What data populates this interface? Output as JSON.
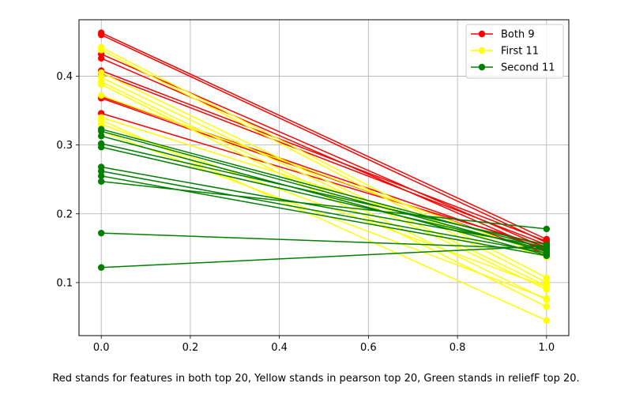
{
  "chart_data": {
    "type": "line",
    "title": "",
    "xlabel": "",
    "ylabel": "",
    "xlim": [
      -0.05,
      1.05
    ],
    "ylim": [
      0.023,
      0.482
    ],
    "xticks": [
      0.0,
      0.2,
      0.4,
      0.6,
      0.8,
      1.0
    ],
    "xtick_labels": [
      "0.0",
      "0.2",
      "0.4",
      "0.6",
      "0.8",
      "1.0"
    ],
    "yticks": [
      0.1,
      0.2,
      0.3,
      0.4
    ],
    "ytick_labels": [
      "0.1",
      "0.2",
      "0.3",
      "0.4"
    ],
    "grid": true,
    "legend_position": "top-right",
    "series": [
      {
        "name": "Both 9",
        "color": "#ff0000",
        "lines": [
          [
            0.463,
            0.163
          ],
          [
            0.46,
            0.158
          ],
          [
            0.432,
            0.15
          ],
          [
            0.426,
            0.145
          ],
          [
            0.408,
            0.16
          ],
          [
            0.404,
            0.155
          ],
          [
            0.37,
            0.148
          ],
          [
            0.368,
            0.142
          ],
          [
            0.346,
            0.152
          ]
        ]
      },
      {
        "name": "First 11",
        "color": "#ffff00",
        "lines": [
          [
            0.442,
            0.107
          ],
          [
            0.438,
            0.1
          ],
          [
            0.405,
            0.095
          ],
          [
            0.398,
            0.09
          ],
          [
            0.392,
            0.075
          ],
          [
            0.388,
            0.065
          ],
          [
            0.372,
            0.14
          ],
          [
            0.34,
            0.137
          ],
          [
            0.336,
            0.045
          ],
          [
            0.33,
            0.094
          ],
          [
            0.32,
            0.077
          ]
        ]
      },
      {
        "name": "Second 11",
        "color": "#008000",
        "lines": [
          [
            0.323,
            0.15
          ],
          [
            0.32,
            0.145
          ],
          [
            0.313,
            0.14
          ],
          [
            0.302,
            0.155
          ],
          [
            0.297,
            0.148
          ],
          [
            0.268,
            0.152
          ],
          [
            0.262,
            0.143
          ],
          [
            0.255,
            0.139
          ],
          [
            0.247,
            0.178
          ],
          [
            0.172,
            0.149
          ],
          [
            0.122,
            0.153
          ]
        ]
      }
    ]
  },
  "caption": "Red stands for features in both top 20, Yellow stands in pearson top 20, Green stands in reliefF top 20."
}
